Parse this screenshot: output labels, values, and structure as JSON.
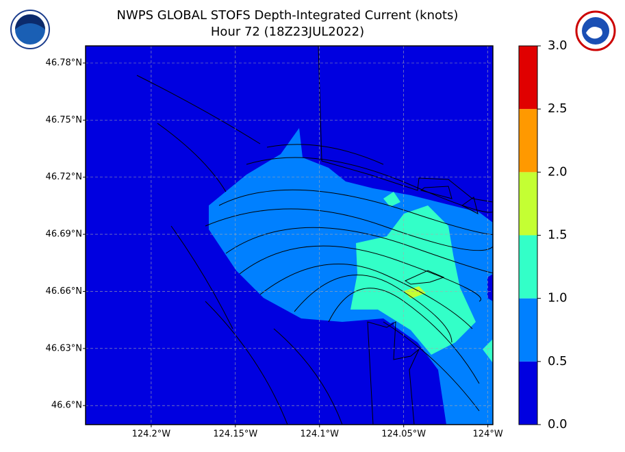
{
  "title": "NWPS GLOBAL STOFS Depth-Integrated Current (knots)",
  "subtitle": "Hour 72 (18Z23JUL2022)",
  "map": {
    "xlim": [
      -124.239,
      -123.997
    ],
    "ylim": [
      46.59,
      46.789
    ],
    "grid": true,
    "lat_ticks": [
      {
        "value": 46.78,
        "label": "46.78°N"
      },
      {
        "value": 46.75,
        "label": "46.75°N"
      },
      {
        "value": 46.72,
        "label": "46.72°N"
      },
      {
        "value": 46.69,
        "label": "46.69°N"
      },
      {
        "value": 46.66,
        "label": "46.66°N"
      },
      {
        "value": 46.63,
        "label": "46.63°N"
      },
      {
        "value": 46.6,
        "label": "46.6°N"
      }
    ],
    "lon_ticks": [
      {
        "value": -124.2,
        "label": "124.2°W"
      },
      {
        "value": -124.15,
        "label": "124.15°W"
      },
      {
        "value": -124.1,
        "label": "124.1°W"
      },
      {
        "value": -124.05,
        "label": "124.05°W"
      },
      {
        "value": -124,
        "label": "124°W"
      }
    ]
  },
  "colorbar": {
    "lim": [
      0,
      3
    ],
    "ticks": [
      {
        "value": 0,
        "label": "0.0"
      },
      {
        "value": 0.5,
        "label": "0.5"
      },
      {
        "value": 1,
        "label": "1.0"
      },
      {
        "value": 1.5,
        "label": "1.5"
      },
      {
        "value": 2,
        "label": "2.0"
      },
      {
        "value": 2.5,
        "label": "2.5"
      },
      {
        "value": 3,
        "label": "3.0"
      }
    ],
    "colors": [
      "#0000e0",
      "#0080ff",
      "#33ffc8",
      "#c4ff33",
      "#ff9900",
      "#e00000"
    ]
  }
}
